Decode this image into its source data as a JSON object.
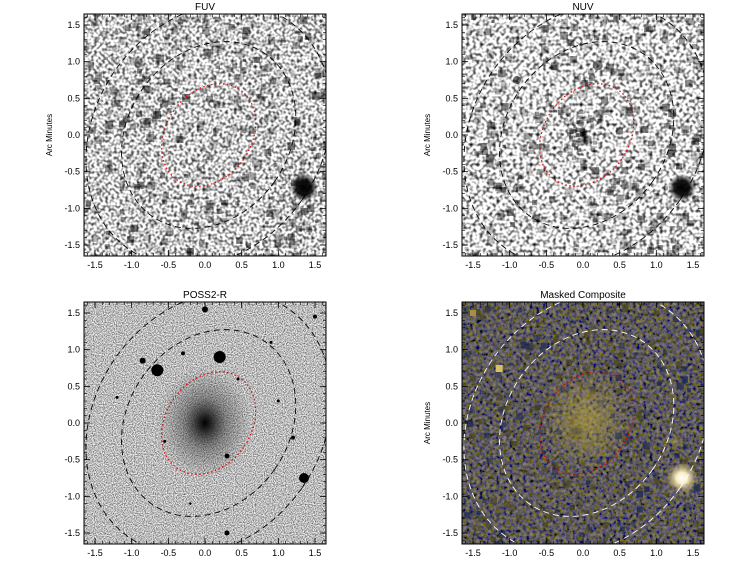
{
  "figure": {
    "panels": [
      {
        "title": "FUV",
        "ylabel": "Arc Minutes",
        "style": "fuv",
        "bright_source": {
          "x": 1.35,
          "y": -0.72
        }
      },
      {
        "title": "NUV",
        "ylabel": "Arc Minutes",
        "style": "nuv",
        "bright_source": {
          "x": 1.35,
          "y": -0.72
        }
      },
      {
        "title": "POSS2-R",
        "ylabel": "",
        "style": "optical",
        "bright_source": {
          "x": 0.0,
          "y": 0.0
        }
      },
      {
        "title": "Masked Composite",
        "ylabel": "Arc Minutes",
        "style": "composite",
        "bright_source": {
          "x": 1.35,
          "y": -0.75
        }
      }
    ],
    "x_ticks": [
      "-1.5",
      "-1.0",
      "-0.5",
      "0.0",
      "0.5",
      "1.0",
      "1.5"
    ],
    "y_ticks": [
      "1.5",
      "1.0",
      "0.5",
      "0.0",
      "-0.5",
      "-1.0",
      "-1.5"
    ],
    "axis_range": [
      -1.65,
      1.65
    ],
    "inner_ellipse": {
      "cx": 0.05,
      "cy": 0.0,
      "rx": 0.58,
      "ry": 0.75,
      "angle_deg": 35,
      "color": "#e00000"
    },
    "outer_ellipses": [
      {
        "cx": 0.05,
        "cy": 0.0,
        "rx": 1.1,
        "ry": 1.35,
        "angle_deg": 35
      },
      {
        "cx": 0.05,
        "cy": 0.0,
        "rx": 1.55,
        "ry": 1.9,
        "angle_deg": 35
      }
    ]
  }
}
